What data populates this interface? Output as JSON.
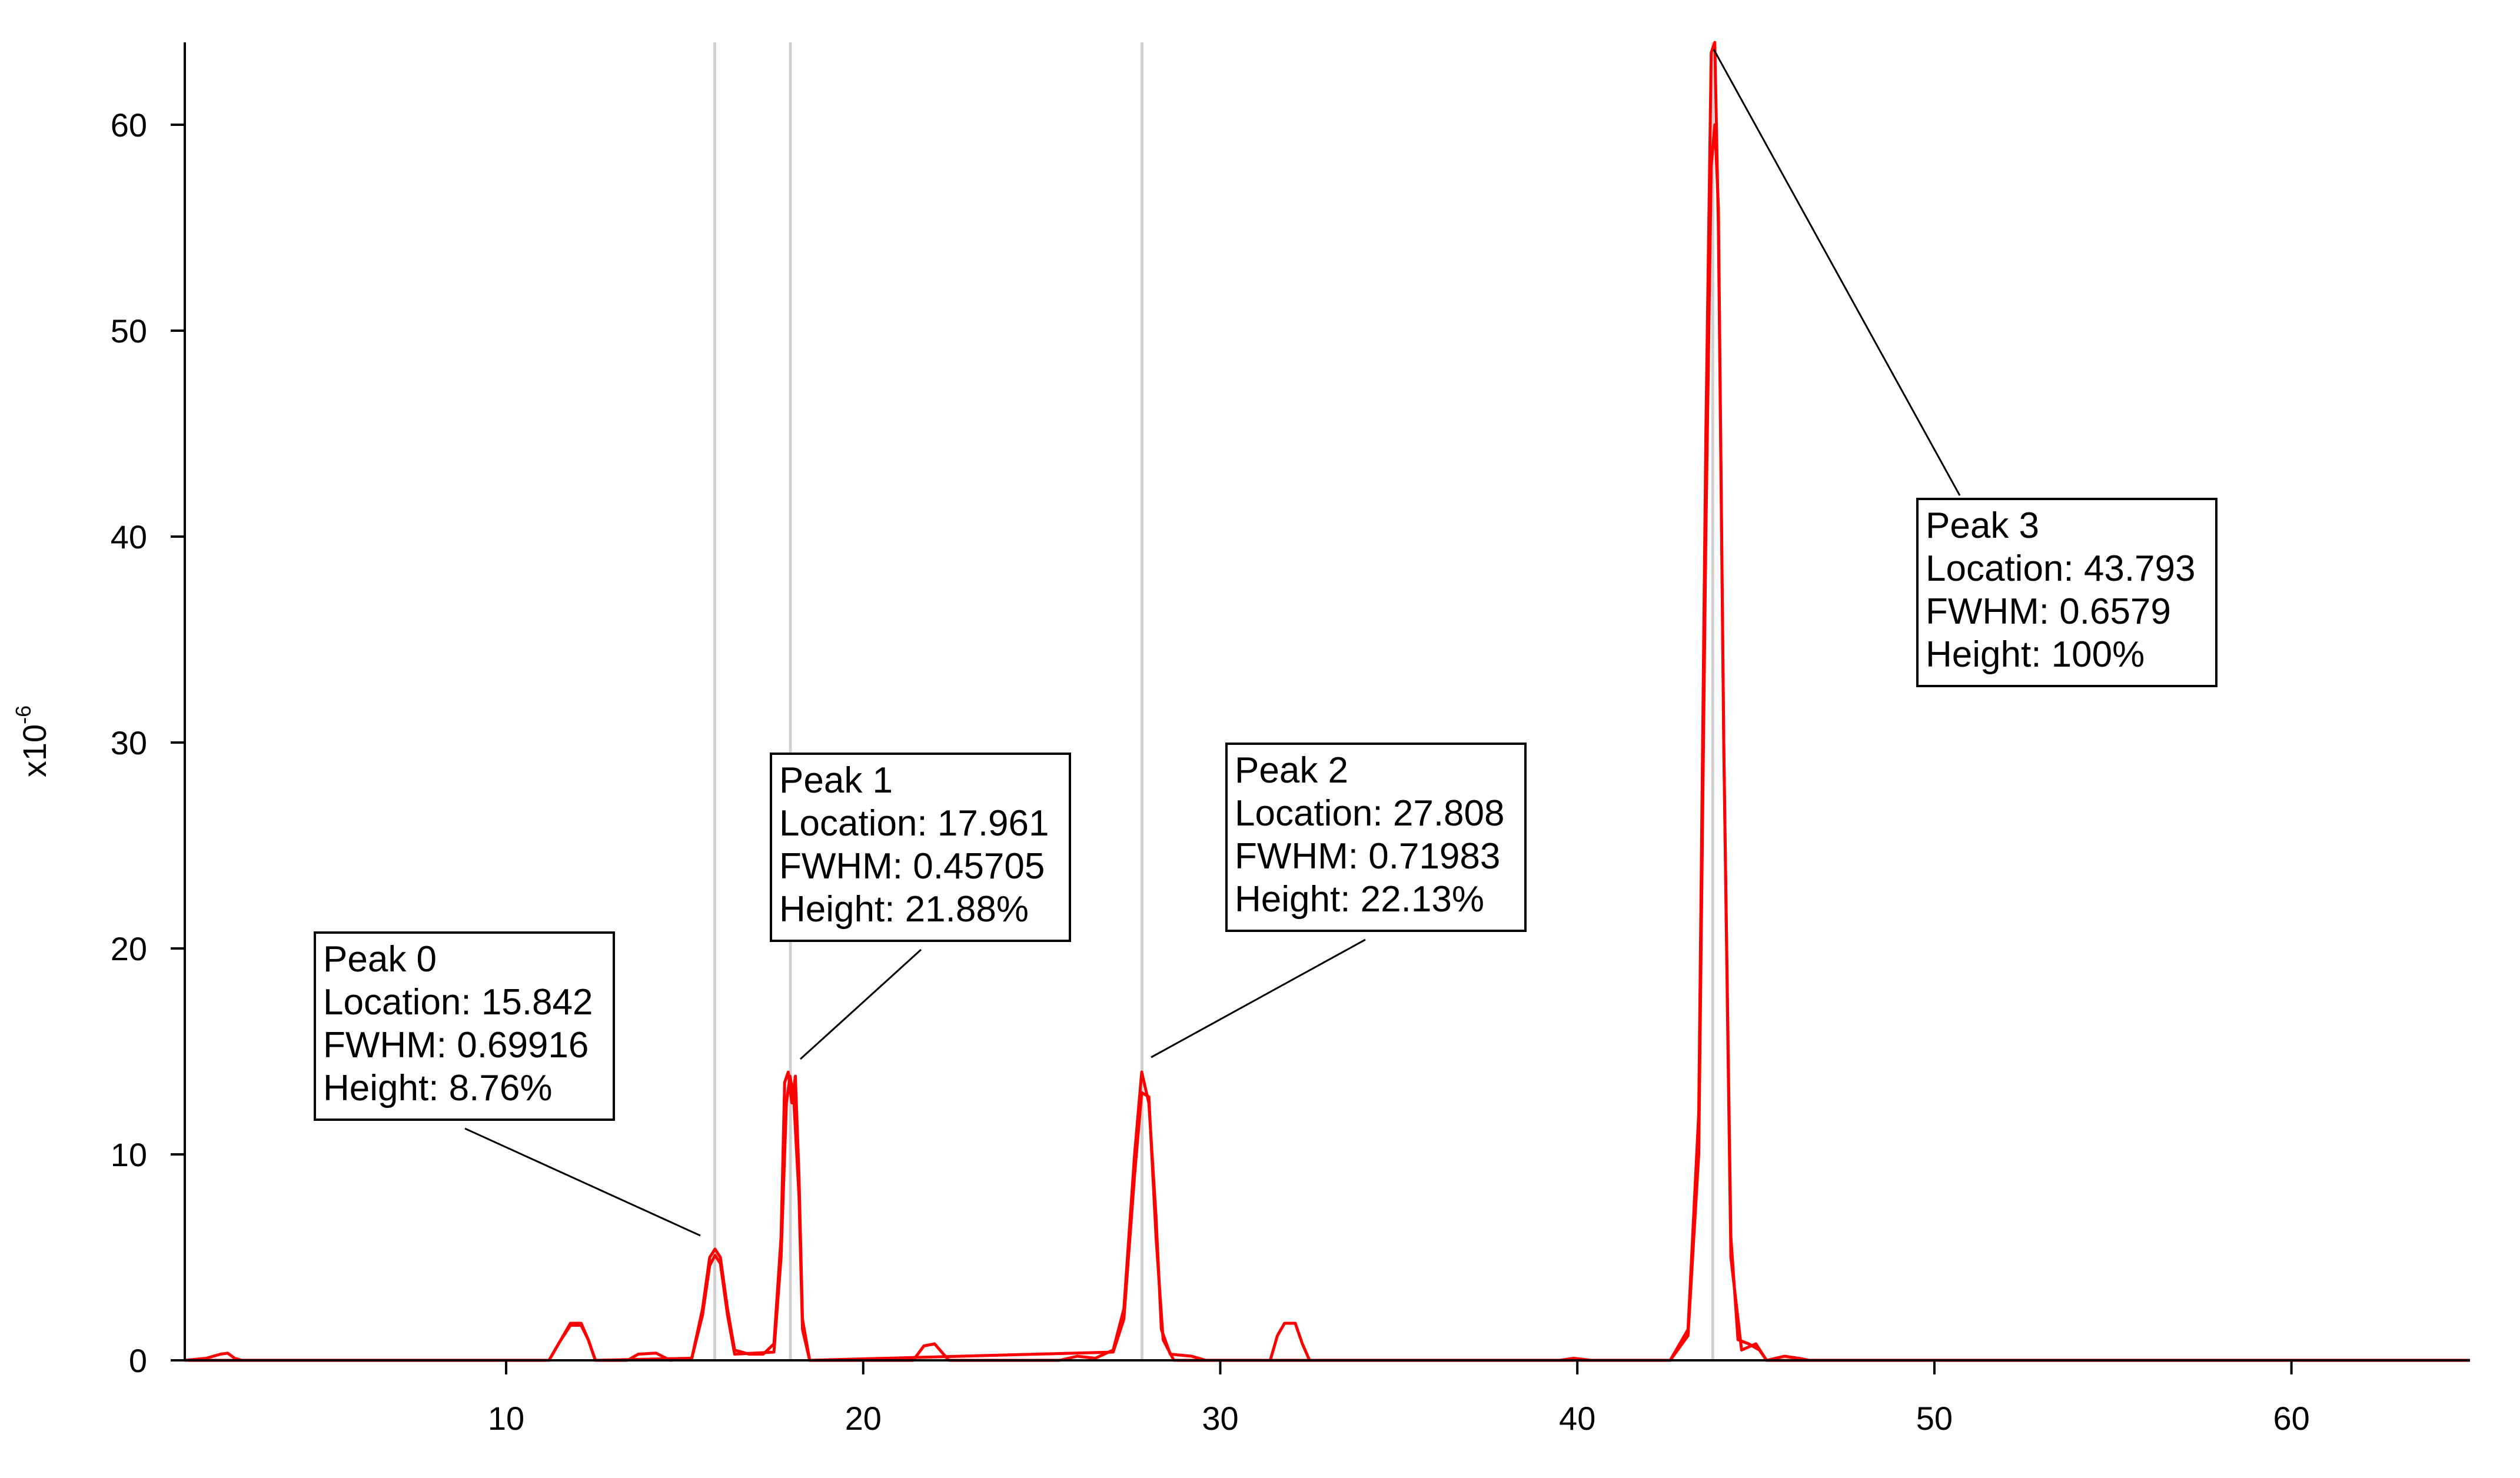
{
  "chart_data": {
    "type": "line",
    "title": "",
    "xlabel": "",
    "ylabel": "x10",
    "ylabel_exponent": "-6",
    "xlim": [
      1,
      65
    ],
    "ylim": [
      0,
      64
    ],
    "x_ticks": [
      10,
      20,
      30,
      40,
      50,
      60
    ],
    "y_ticks": [
      0,
      10,
      20,
      30,
      40,
      50,
      60
    ],
    "grid": false,
    "line_color": "#ff0000",
    "marker_line_color": "#d0d0d0",
    "marker_lines_x": [
      15.842,
      17.961,
      27.808,
      43.793
    ],
    "series": [
      {
        "values": [
          [
            1,
            0
          ],
          [
            1.6,
            0.1
          ],
          [
            2,
            0.3
          ],
          [
            2.2,
            0.35
          ],
          [
            2.4,
            0.1
          ],
          [
            2.6,
            0
          ],
          [
            11.2,
            0
          ],
          [
            11.5,
            0.9
          ],
          [
            11.8,
            1.8
          ],
          [
            12.1,
            1.8
          ],
          [
            12.3,
            1.0
          ],
          [
            12.5,
            0
          ],
          [
            13.4,
            0
          ],
          [
            13.7,
            0.3
          ],
          [
            14.2,
            0.35
          ],
          [
            14.6,
            0
          ],
          [
            15.2,
            0.1
          ],
          [
            15.5,
            2.5
          ],
          [
            15.7,
            5.0
          ],
          [
            15.85,
            5.4
          ],
          [
            16.0,
            5.0
          ],
          [
            16.2,
            2.5
          ],
          [
            16.4,
            0.5
          ],
          [
            16.8,
            0.3
          ],
          [
            17.2,
            0.3
          ],
          [
            17.5,
            0.8
          ],
          [
            17.7,
            6.0
          ],
          [
            17.8,
            13.5
          ],
          [
            17.9,
            14.0
          ],
          [
            18.0,
            12.5
          ],
          [
            18.1,
            13.8
          ],
          [
            18.2,
            9.0
          ],
          [
            18.3,
            2.0
          ],
          [
            18.5,
            0
          ],
          [
            21.4,
            0
          ],
          [
            21.7,
            0.7
          ],
          [
            22.0,
            0.8
          ],
          [
            22.2,
            0.4
          ],
          [
            22.4,
            0
          ],
          [
            25.5,
            0
          ],
          [
            26.0,
            0.2
          ],
          [
            26.5,
            0.1
          ],
          [
            27.0,
            0.5
          ],
          [
            27.3,
            2.5
          ],
          [
            27.6,
            10.0
          ],
          [
            27.8,
            14.0
          ],
          [
            28.0,
            12.5
          ],
          [
            28.2,
            7.0
          ],
          [
            28.35,
            1.5
          ],
          [
            28.6,
            0.3
          ],
          [
            29.2,
            0.2
          ],
          [
            29.6,
            0
          ],
          [
            31.4,
            0
          ],
          [
            31.6,
            1.2
          ],
          [
            31.8,
            1.8
          ],
          [
            32.1,
            1.8
          ],
          [
            32.3,
            0.8
          ],
          [
            32.5,
            0
          ],
          [
            39.5,
            0
          ],
          [
            39.9,
            0.1
          ],
          [
            40.4,
            0
          ],
          [
            42.6,
            0
          ],
          [
            43.1,
            1.5
          ],
          [
            43.4,
            12.0
          ],
          [
            43.6,
            45.0
          ],
          [
            43.75,
            63.5
          ],
          [
            43.85,
            64.0
          ],
          [
            43.95,
            55.0
          ],
          [
            44.1,
            30.0
          ],
          [
            44.3,
            6.0
          ],
          [
            44.5,
            1.0
          ],
          [
            44.8,
            0.8
          ],
          [
            45.1,
            0.5
          ],
          [
            45.3,
            0
          ],
          [
            45.8,
            0.2
          ],
          [
            46.2,
            0.1
          ],
          [
            46.5,
            0
          ],
          [
            65,
            0
          ]
        ]
      },
      {
        "values": [
          [
            1,
            0
          ],
          [
            11.2,
            0
          ],
          [
            11.5,
            0.9
          ],
          [
            11.8,
            1.7
          ],
          [
            12.1,
            1.7
          ],
          [
            12.3,
            1.0
          ],
          [
            12.5,
            0
          ],
          [
            15.2,
            0.1
          ],
          [
            15.5,
            2.2
          ],
          [
            15.7,
            4.6
          ],
          [
            15.85,
            5.1
          ],
          [
            16.0,
            4.7
          ],
          [
            16.2,
            2.2
          ],
          [
            16.4,
            0.3
          ],
          [
            17.5,
            0.4
          ],
          [
            17.7,
            5.0
          ],
          [
            17.85,
            12.5
          ],
          [
            17.95,
            13.8
          ],
          [
            18.05,
            12.8
          ],
          [
            18.2,
            8.0
          ],
          [
            18.3,
            1.5
          ],
          [
            18.5,
            0
          ],
          [
            27.0,
            0.4
          ],
          [
            27.3,
            2.0
          ],
          [
            27.6,
            9.0
          ],
          [
            27.8,
            13.0
          ],
          [
            28.0,
            12.8
          ],
          [
            28.2,
            6.0
          ],
          [
            28.4,
            1.0
          ],
          [
            28.7,
            0
          ],
          [
            42.6,
            0
          ],
          [
            43.1,
            1.2
          ],
          [
            43.4,
            10.0
          ],
          [
            43.6,
            40.0
          ],
          [
            43.75,
            58.0
          ],
          [
            43.85,
            60.0
          ],
          [
            43.95,
            56.0
          ],
          [
            44.1,
            30.0
          ],
          [
            44.3,
            5.0
          ],
          [
            44.6,
            0.5
          ],
          [
            45.0,
            0.8
          ],
          [
            45.3,
            0
          ],
          [
            65,
            0
          ]
        ]
      }
    ],
    "annotations": [
      {
        "title": "Peak 0",
        "location": "Location: 15.842",
        "fwhm": "FWHM: 0.69916",
        "height": "Height: 8.76%",
        "peak_x": 15.842,
        "peak_y": 5.4
      },
      {
        "title": "Peak 1",
        "location": "Location: 17.961",
        "fwhm": "FWHM: 0.45705",
        "height": "Height: 21.88%",
        "peak_x": 17.961,
        "peak_y": 14.0
      },
      {
        "title": "Peak 2",
        "location": "Location: 27.808",
        "fwhm": "FWHM: 0.71983",
        "height": "Height: 22.13%",
        "peak_x": 27.808,
        "peak_y": 14.0
      },
      {
        "title": "Peak 3",
        "location": "Location: 43.793",
        "fwhm": "FWHM: 0.6579",
        "height": "Height: 100%",
        "peak_x": 43.793,
        "peak_y": 64.0
      }
    ]
  }
}
